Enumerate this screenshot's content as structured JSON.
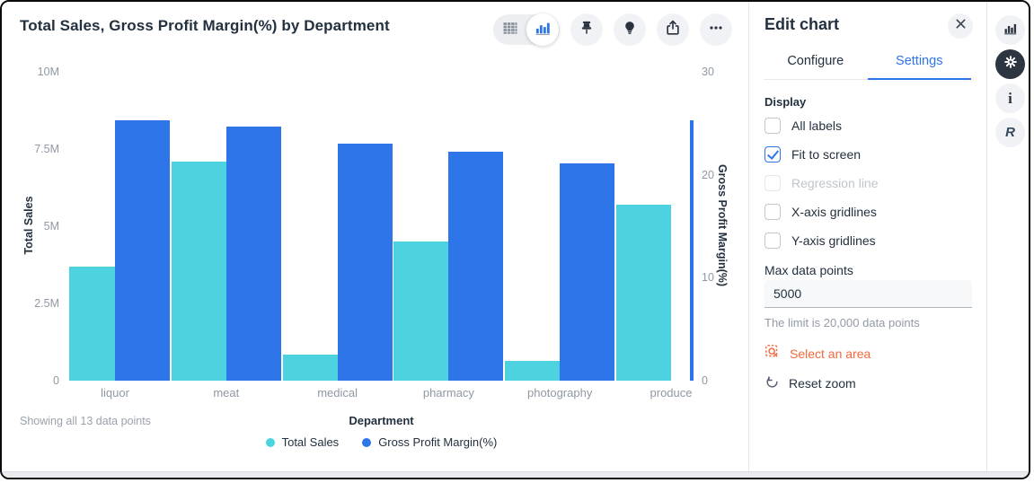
{
  "card": {
    "title": "Total Sales, Gross Profit Margin(%) by Department",
    "toolbar": {
      "table_view": "table-view",
      "chart_view_selected": "bar-chart-view",
      "buttons": [
        "pin",
        "insights",
        "share",
        "more"
      ]
    },
    "footer": {
      "showing": "Showing all 13 data points"
    }
  },
  "chart_data": {
    "type": "bar",
    "title": "Total Sales, Gross Profit Margin(%) by Department",
    "categories": [
      "liquor",
      "meat",
      "medical",
      "pharmacy",
      "photography",
      "produce"
    ],
    "series": [
      {
        "name": "Total Sales",
        "axis": "left",
        "color": "#4DD2DF",
        "values": [
          3.7,
          7.1,
          0.85,
          4.5,
          0.65,
          5.7
        ]
      },
      {
        "name": "Gross Profit Margin(%)",
        "axis": "right",
        "color": "#2E75EA",
        "values": [
          25.3,
          24.7,
          23.0,
          22.2,
          21.1,
          25.3
        ]
      }
    ],
    "left_axis": {
      "label": "Total Sales",
      "ticks": [
        "0",
        "2.5M",
        "5M",
        "7.5M",
        "10M"
      ],
      "max": 10,
      "tick_values": [
        0,
        2.5,
        5,
        7.5,
        10
      ]
    },
    "right_axis": {
      "label": "Gross Profit Margin(%)",
      "ticks": [
        "0",
        "10",
        "20",
        "30"
      ],
      "max": 30,
      "tick_values": [
        0,
        10,
        20,
        30
      ]
    },
    "xlabel": "Department",
    "grid": false,
    "legend_position": "bottom-center",
    "last_margin_bar_clipped_at_right_edge": true
  },
  "panel": {
    "title": "Edit chart",
    "tabs": [
      {
        "label": "Configure",
        "active": false
      },
      {
        "label": "Settings",
        "active": true
      }
    ],
    "section": "Display",
    "display_options": [
      {
        "label": "All labels",
        "checked": false,
        "disabled": false
      },
      {
        "label": "Fit to screen",
        "checked": true,
        "disabled": false
      },
      {
        "label": "Regression line",
        "checked": false,
        "disabled": true
      },
      {
        "label": "X-axis gridlines",
        "checked": false,
        "disabled": false
      },
      {
        "label": "Y-axis gridlines",
        "checked": false,
        "disabled": false
      }
    ],
    "max_points": {
      "label": "Max data points",
      "value": "5000",
      "helper": "The limit is 20,000 data points"
    },
    "select_area_label": "Select an area",
    "reset_zoom_label": "Reset zoom"
  },
  "rail": {
    "buttons": [
      "visualization",
      "settings",
      "info",
      "r-script"
    ]
  },
  "colors": {
    "cyan": "#4DD2DF",
    "blue": "#2E75EA",
    "orange": "#F2693D",
    "dark": "#2D3540"
  }
}
